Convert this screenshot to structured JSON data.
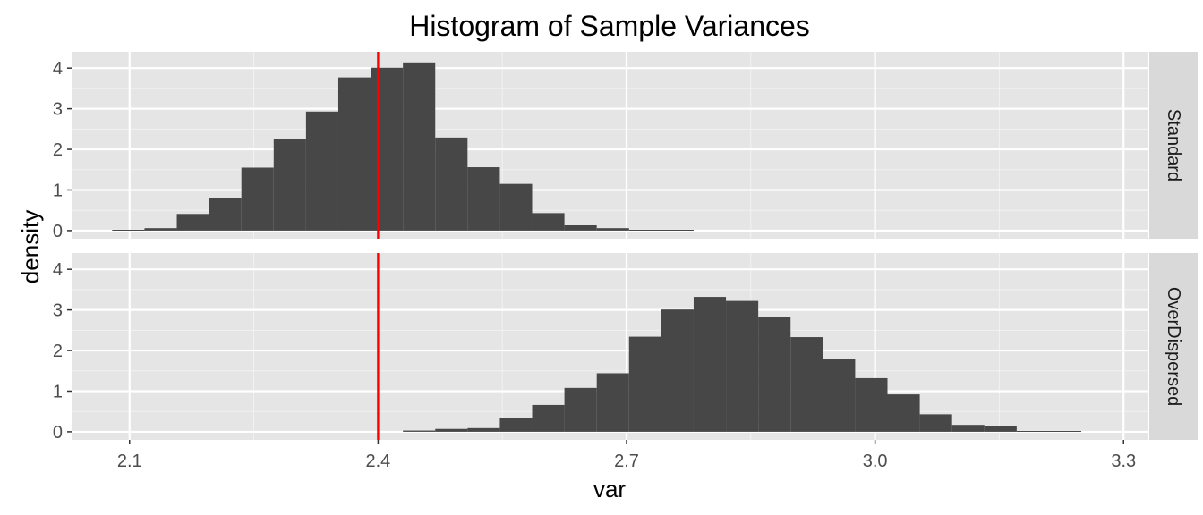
{
  "chart_data": {
    "type": "histogram",
    "title": "Histogram of Sample Variances",
    "xlabel": "var",
    "ylabel": "density",
    "xlim": [
      2.03,
      3.33
    ],
    "ylim": [
      -0.2,
      4.4
    ],
    "x_ticks": [
      "2.1",
      "2.4",
      "2.7",
      "3.0",
      "3.3"
    ],
    "x_tick_values": [
      2.1,
      2.4,
      2.7,
      3.0,
      3.3
    ],
    "y_ticks": [
      "0",
      "1",
      "2",
      "3",
      "4"
    ],
    "y_tick_values": [
      0,
      1,
      2,
      3,
      4
    ],
    "grid": true,
    "reference_line": {
      "x": 2.4,
      "color": "#ff0000"
    },
    "bar_color": "#474747",
    "panel_background": "#e5e5e5",
    "strip_background": "#d9d9d9",
    "bin_width": 0.039,
    "panels": [
      {
        "strip_label": "Standard",
        "bins": [
          {
            "x0": 2.079,
            "density": 0.02
          },
          {
            "x0": 2.118,
            "density": 0.06
          },
          {
            "x0": 2.157,
            "density": 0.41
          },
          {
            "x0": 2.196,
            "density": 0.8
          },
          {
            "x0": 2.235,
            "density": 1.55
          },
          {
            "x0": 2.274,
            "density": 2.25
          },
          {
            "x0": 2.313,
            "density": 2.93
          },
          {
            "x0": 2.352,
            "density": 3.77
          },
          {
            "x0": 2.391,
            "density": 4.01
          },
          {
            "x0": 2.43,
            "density": 4.14
          },
          {
            "x0": 2.469,
            "density": 2.29
          },
          {
            "x0": 2.508,
            "density": 1.56
          },
          {
            "x0": 2.547,
            "density": 1.15
          },
          {
            "x0": 2.586,
            "density": 0.43
          },
          {
            "x0": 2.625,
            "density": 0.13
          },
          {
            "x0": 2.664,
            "density": 0.06
          },
          {
            "x0": 2.703,
            "density": 0.02
          },
          {
            "x0": 2.742,
            "density": 0.02
          }
        ]
      },
      {
        "strip_label": "OverDispersed",
        "bins": [
          {
            "x0": 2.43,
            "density": 0.03
          },
          {
            "x0": 2.469,
            "density": 0.07
          },
          {
            "x0": 2.508,
            "density": 0.09
          },
          {
            "x0": 2.547,
            "density": 0.35
          },
          {
            "x0": 2.586,
            "density": 0.66
          },
          {
            "x0": 2.625,
            "density": 1.08
          },
          {
            "x0": 2.664,
            "density": 1.44
          },
          {
            "x0": 2.703,
            "density": 2.34
          },
          {
            "x0": 2.742,
            "density": 3.01
          },
          {
            "x0": 2.781,
            "density": 3.32
          },
          {
            "x0": 2.82,
            "density": 3.22
          },
          {
            "x0": 2.859,
            "density": 2.82
          },
          {
            "x0": 2.898,
            "density": 2.33
          },
          {
            "x0": 2.937,
            "density": 1.8
          },
          {
            "x0": 2.976,
            "density": 1.32
          },
          {
            "x0": 3.015,
            "density": 0.92
          },
          {
            "x0": 3.054,
            "density": 0.43
          },
          {
            "x0": 3.093,
            "density": 0.17
          },
          {
            "x0": 3.132,
            "density": 0.13
          },
          {
            "x0": 3.171,
            "density": 0.02
          },
          {
            "x0": 3.21,
            "density": 0.02
          }
        ]
      }
    ]
  }
}
